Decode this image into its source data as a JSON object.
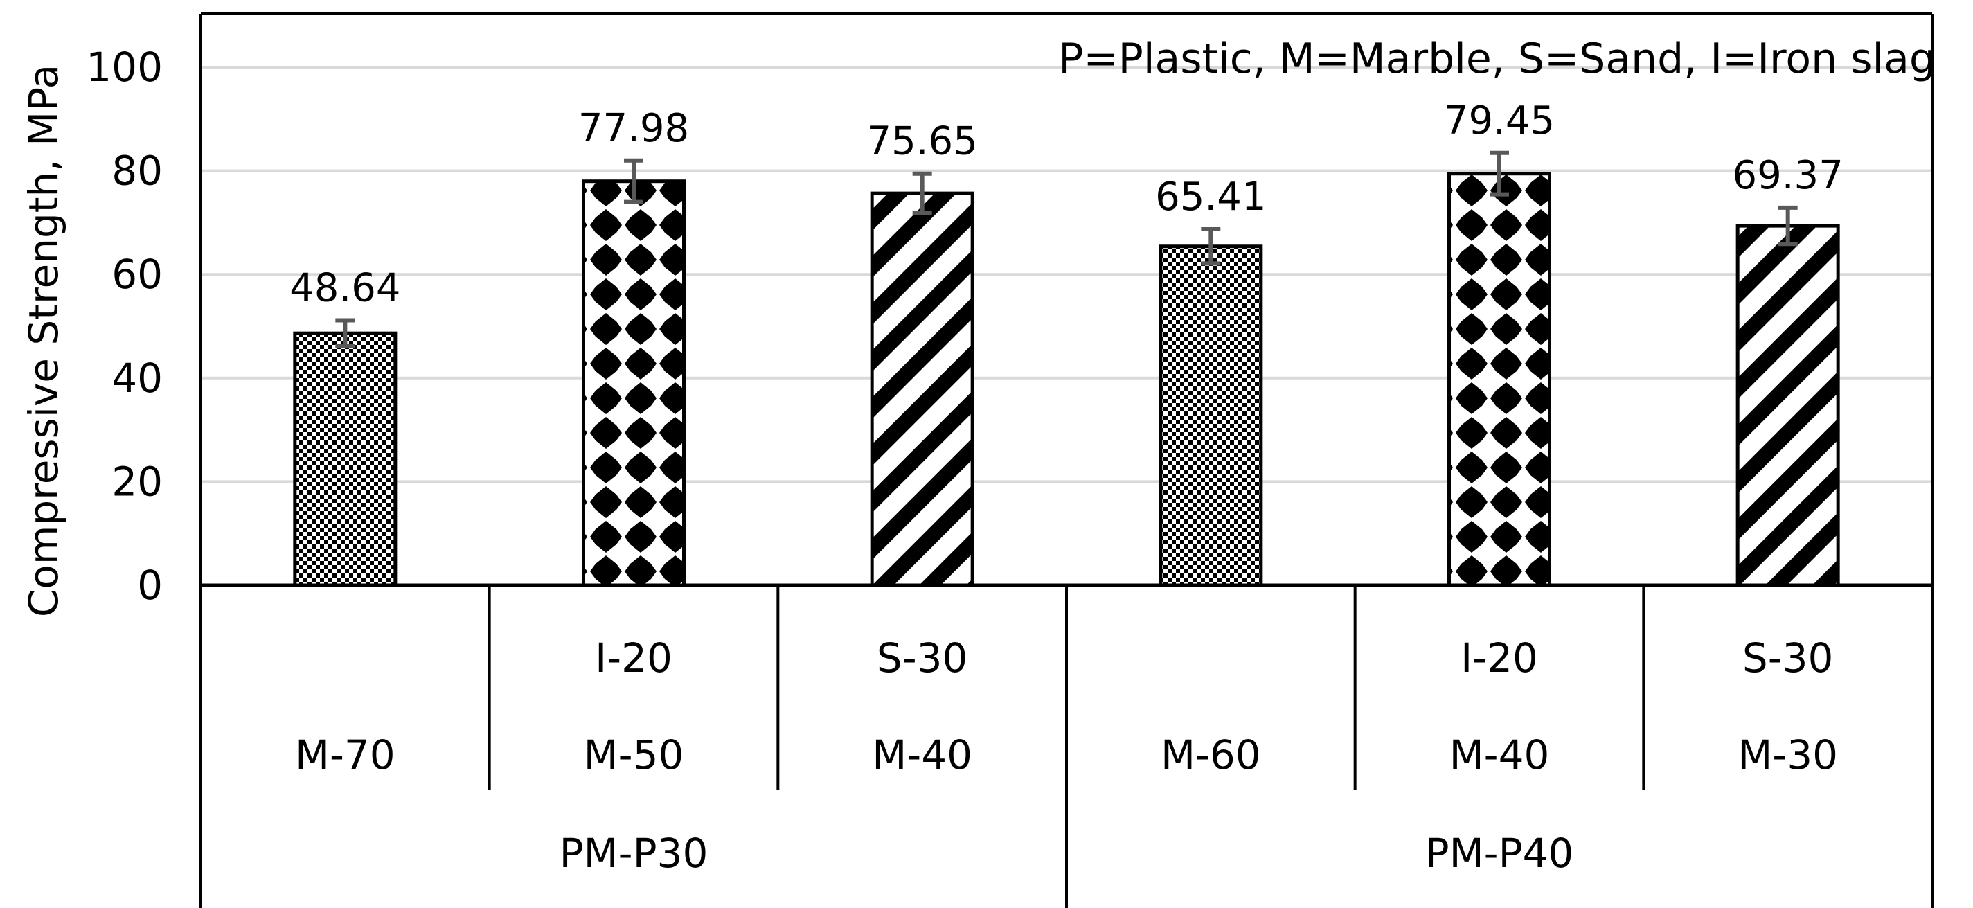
{
  "chart_data": {
    "type": "bar",
    "title": "",
    "ylabel": "Compressive Strength, MPa",
    "xlabel": "",
    "ylim": [
      0,
      100
    ],
    "yticks": [
      0,
      20,
      40,
      60,
      80,
      100
    ],
    "grid": true,
    "legend_note": "P=Plastic, M=Marble, S=Sand, I=Iron slag",
    "categories": [
      {
        "line1": "",
        "line2": "M-70",
        "group": "PM-P30"
      },
      {
        "line1": "I-20",
        "line2": "M-50",
        "group": "PM-P30"
      },
      {
        "line1": "S-30",
        "line2": "M-40",
        "group": "PM-P30"
      },
      {
        "line1": "",
        "line2": "M-60",
        "group": "PM-P40"
      },
      {
        "line1": "I-20",
        "line2": "M-40",
        "group": "PM-P40"
      },
      {
        "line1": "S-30",
        "line2": "M-30",
        "group": "PM-P40"
      }
    ],
    "groups": [
      "PM-P30",
      "PM-P40"
    ],
    "values": [
      48.64,
      77.98,
      75.65,
      65.41,
      79.45,
      69.37
    ],
    "value_labels": [
      "48.64",
      "77.98",
      "75.65",
      "65.41",
      "79.45",
      "69.37"
    ],
    "errors": [
      2.5,
      4,
      3.8,
      3.3,
      4,
      3.5
    ],
    "patterns": [
      "checker",
      "dots",
      "diagonal",
      "checker",
      "dots",
      "diagonal"
    ],
    "colors": {
      "bar_outline": "#000000",
      "grid": "#d9d9d9",
      "error_bar": "#595959",
      "pattern": "#000000"
    }
  }
}
